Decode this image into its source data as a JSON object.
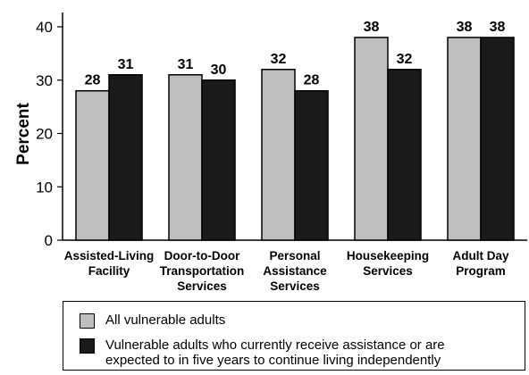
{
  "chart_data": {
    "type": "bar",
    "ylabel": "Percent",
    "ylim": [
      0,
      40
    ],
    "yticks": [
      0,
      10,
      20,
      30,
      40
    ],
    "grid": false,
    "legend_position": "bottom",
    "categories": [
      "Assisted-Living\nFacility",
      "Door-to-Door\nTransportation\nServices",
      "Personal\nAssistance\nServices",
      "Housekeeping\nServices",
      "Adult Day\nProgram"
    ],
    "series": [
      {
        "name": "All vulnerable adults",
        "color": "#bfbfbf",
        "values": [
          28,
          31,
          32,
          38,
          38
        ]
      },
      {
        "name": "Vulnerable adults who currently receive assistance or are\nexpected to in five years to continue living independently",
        "color": "#1a1a1a",
        "values": [
          31,
          30,
          28,
          32,
          38
        ]
      }
    ]
  }
}
